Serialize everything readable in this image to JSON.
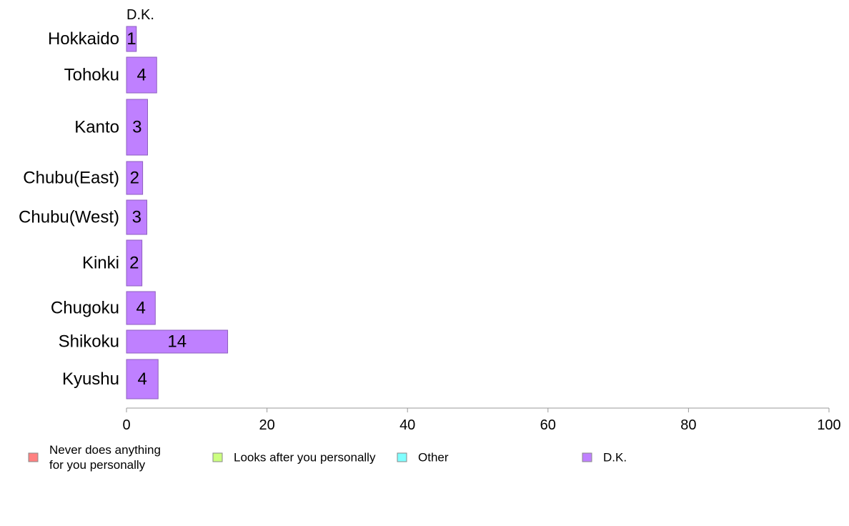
{
  "chart_data": {
    "type": "bar",
    "orientation": "horizontal",
    "stacked": true,
    "categories": [
      "Hokkaido",
      "Tohoku",
      "Kanto",
      "Chubu(East)",
      "Chubu(West)",
      "Kinki",
      "Chugoku",
      "Shikoku",
      "Kyushu"
    ],
    "series": [
      {
        "name": "Never does anything for you personally",
        "color": "#ff8080",
        "values": [
          null,
          null,
          null,
          null,
          null,
          null,
          null,
          null,
          null
        ]
      },
      {
        "name": "Looks after you personally",
        "color": "#ccff80",
        "values": [
          null,
          null,
          null,
          null,
          null,
          null,
          null,
          null,
          null
        ]
      },
      {
        "name": "Other",
        "color": "#80ffff",
        "values": [
          null,
          null,
          null,
          null,
          null,
          null,
          null,
          null,
          null
        ]
      },
      {
        "name": "D.K.",
        "color": "#bf80ff",
        "values": [
          1.4,
          4.3,
          3.0,
          2.3,
          2.9,
          2.2,
          4.1,
          14.4,
          4.5
        ],
        "labels": [
          "1",
          "4",
          "3",
          "2",
          "3",
          "2",
          "4",
          "14",
          "4"
        ]
      }
    ],
    "series_header": "D.K.",
    "xlim": [
      0,
      100
    ],
    "xticks": [
      "0",
      "20",
      "40",
      "60",
      "80",
      "100"
    ],
    "grid": false,
    "legend_position": "bottom",
    "legend": [
      {
        "lines": [
          "Never does anything",
          "for you personally"
        ],
        "color": "#ff8080"
      },
      {
        "lines": [
          "Looks after you personally"
        ],
        "color": "#ccff80"
      },
      {
        "lines": [
          "Other"
        ],
        "color": "#80ffff"
      },
      {
        "lines": [
          "D.K."
        ],
        "color": "#bf80ff"
      }
    ],
    "bar_stroke_color": "#8e5fbf",
    "axis_color": "#999999"
  }
}
